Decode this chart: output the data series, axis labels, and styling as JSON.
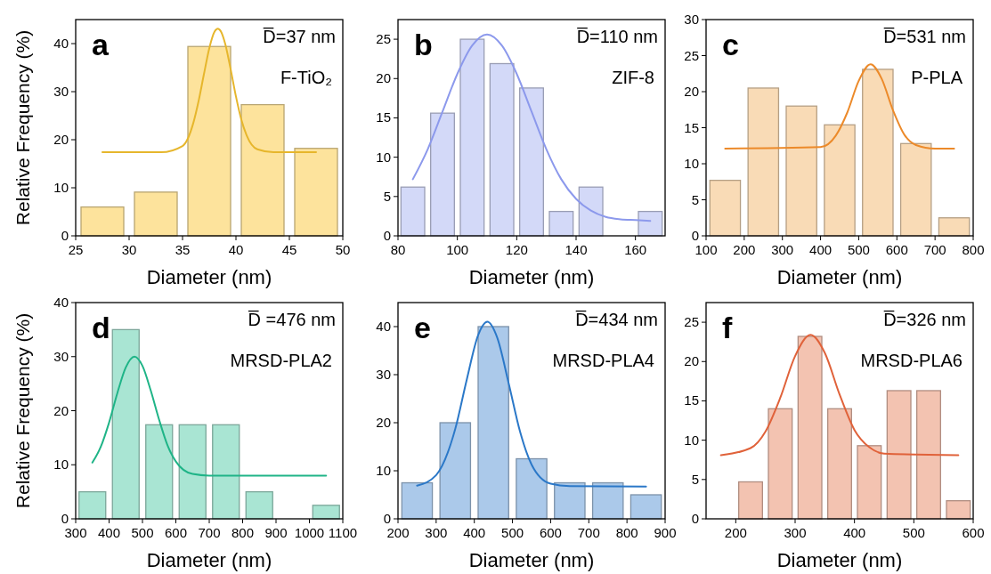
{
  "chart_data": [
    {
      "type": "bar",
      "xlabel": "Diameter (nm)",
      "ylabel": "Relative Frequency (%)",
      "annotations": [
        "a",
        "D̅=37 nm",
        "F-TiO₂"
      ],
      "xlim": [
        25,
        50
      ],
      "xticks": [
        25,
        30,
        35,
        40,
        45,
        50
      ],
      "ylim": [
        0,
        45
      ],
      "yticks": [
        0,
        10,
        20,
        30,
        40
      ],
      "series": [
        {
          "color": "#fde39c",
          "x": [
            27.5,
            32.5,
            37.5,
            42.5,
            47.5
          ],
          "values": [
            6.0,
            9.1,
            39.4,
            27.3,
            18.2
          ]
        },
        {
          "type": "line",
          "color": "#e6b62c",
          "x": [
            27.5,
            33,
            35,
            36,
            36.5,
            37,
            37.5,
            38,
            38.3,
            38.6,
            39,
            39.5,
            40,
            40.5,
            41,
            42,
            43.5,
            47.5
          ],
          "values": [
            17.4,
            17.4,
            18.7,
            23.4,
            28.0,
            33.6,
            39.0,
            42.5,
            43.1,
            42.5,
            39.9,
            34.7,
            29.0,
            24.2,
            20.9,
            18.0,
            17.4,
            17.4
          ]
        }
      ]
    },
    {
      "type": "bar",
      "xlabel": "Diameter (nm)",
      "annotations": [
        "b",
        "D̅=110 nm",
        "ZIF-8"
      ],
      "xlim": [
        80,
        170
      ],
      "xticks": [
        80,
        100,
        120,
        140,
        160
      ],
      "ylim": [
        0,
        27.5
      ],
      "yticks": [
        0,
        5,
        10,
        15,
        20,
        25
      ],
      "series": [
        {
          "color": "#d3d9f8",
          "x": [
            85,
            95,
            105,
            115,
            125,
            135,
            145,
            165
          ],
          "values": [
            6.2,
            15.6,
            25.0,
            21.9,
            18.8,
            3.1,
            6.2,
            3.1
          ]
        },
        {
          "type": "line",
          "color": "#8c99ec",
          "x": [
            85,
            90,
            95,
            100,
            105,
            110,
            115,
            120,
            125,
            130,
            135,
            140,
            145,
            150,
            155,
            160,
            165
          ],
          "values": [
            7.2,
            11.0,
            15.8,
            20.6,
            24.2,
            25.6,
            24.2,
            20.6,
            15.8,
            11.0,
            7.2,
            4.7,
            3.2,
            2.4,
            2.1,
            2.0,
            1.9
          ]
        }
      ]
    },
    {
      "type": "bar",
      "xlabel": "Diameter (nm)",
      "annotations": [
        "c",
        "D̅=531 nm",
        "P-PLA"
      ],
      "xlim": [
        100,
        800
      ],
      "xticks": [
        100,
        200,
        300,
        400,
        500,
        600,
        700,
        800
      ],
      "ylim": [
        0,
        30
      ],
      "yticks": [
        0,
        5,
        10,
        15,
        20,
        25,
        30
      ],
      "series": [
        {
          "color": "#f9dbb6",
          "x": [
            150,
            250,
            350,
            450,
            550,
            650,
            750
          ],
          "values": [
            7.7,
            20.5,
            18.0,
            15.4,
            23.1,
            12.8,
            2.5
          ]
        },
        {
          "type": "line",
          "color": "#ec8a2a",
          "x": [
            150,
            400,
            440,
            470,
            500,
            531,
            560,
            590,
            620,
            650,
            700,
            750
          ],
          "values": [
            12.1,
            12.3,
            13.9,
            17.1,
            21.5,
            23.8,
            21.8,
            17.4,
            14.0,
            12.6,
            12.1,
            12.1
          ]
        }
      ]
    },
    {
      "type": "bar",
      "xlabel": "Diameter (nm)",
      "ylabel": "Relative Frequency (%)",
      "annotations": [
        "d",
        "D̅ =476 nm",
        "MRSD-PLA2"
      ],
      "xlim": [
        300,
        1100
      ],
      "xticks": [
        300,
        400,
        500,
        600,
        700,
        800,
        900,
        1000,
        1100
      ],
      "ylim": [
        0,
        40
      ],
      "yticks": [
        0,
        10,
        20,
        30,
        40
      ],
      "series": [
        {
          "color": "#a9e5d3",
          "x": [
            350,
            450,
            550,
            650,
            750,
            850,
            1050
          ],
          "values": [
            5.0,
            35.0,
            17.4,
            17.4,
            17.4,
            5.0,
            2.5
          ]
        },
        {
          "type": "line",
          "color": "#1fb487",
          "x": [
            350,
            375,
            400,
            425,
            450,
            476,
            500,
            525,
            550,
            575,
            600,
            650,
            700,
            1050
          ],
          "values": [
            10.4,
            13.3,
            17.8,
            23.3,
            28.0,
            30.0,
            28.3,
            23.7,
            18.3,
            13.6,
            10.6,
            8.3,
            8.0,
            8.0
          ]
        }
      ]
    },
    {
      "type": "bar",
      "xlabel": "Diameter (nm)",
      "annotations": [
        "e",
        "D̅=434 nm",
        "MRSD-PLA4"
      ],
      "xlim": [
        200,
        900
      ],
      "xticks": [
        200,
        300,
        400,
        500,
        600,
        700,
        800,
        900
      ],
      "ylim": [
        0,
        45
      ],
      "yticks": [
        0,
        10,
        20,
        30,
        40
      ],
      "series": [
        {
          "color": "#abc9ea",
          "x": [
            250,
            350,
            450,
            550,
            650,
            750,
            850
          ],
          "values": [
            7.5,
            20.0,
            40.0,
            12.5,
            7.5,
            7.5,
            5.0
          ]
        },
        {
          "type": "line",
          "color": "#2b78c8",
          "x": [
            250,
            300,
            350,
            380,
            410,
            434,
            460,
            490,
            520,
            550,
            600,
            650,
            850
          ],
          "values": [
            6.9,
            9.1,
            18.7,
            28.9,
            38.2,
            41.0,
            37.7,
            28.2,
            18.1,
            11.3,
            7.3,
            6.8,
            6.7
          ]
        }
      ]
    },
    {
      "type": "bar",
      "xlabel": "Diameter (nm)",
      "annotations": [
        "f",
        "D̅=326 nm",
        "MRSD-PLA6"
      ],
      "xlim": [
        150,
        600
      ],
      "xticks": [
        200,
        300,
        400,
        500,
        600
      ],
      "ylim": [
        0,
        27.5
      ],
      "yticks": [
        0,
        5,
        10,
        15,
        20,
        25
      ],
      "series": [
        {
          "color": "#f3c3b1",
          "x": [
            225,
            275,
            325,
            375,
            425,
            475,
            525,
            575
          ],
          "values": [
            4.7,
            14.0,
            23.2,
            14.0,
            9.3,
            16.3,
            16.3,
            2.3
          ]
        },
        {
          "type": "line",
          "color": "#e0623a",
          "x": [
            175,
            225,
            250,
            275,
            300,
            326,
            350,
            375,
            400,
            425,
            450,
            575
          ],
          "values": [
            8.1,
            9.0,
            11.1,
            15.4,
            20.7,
            23.4,
            21.1,
            15.8,
            11.3,
            9.1,
            8.3,
            8.1
          ]
        }
      ]
    }
  ]
}
